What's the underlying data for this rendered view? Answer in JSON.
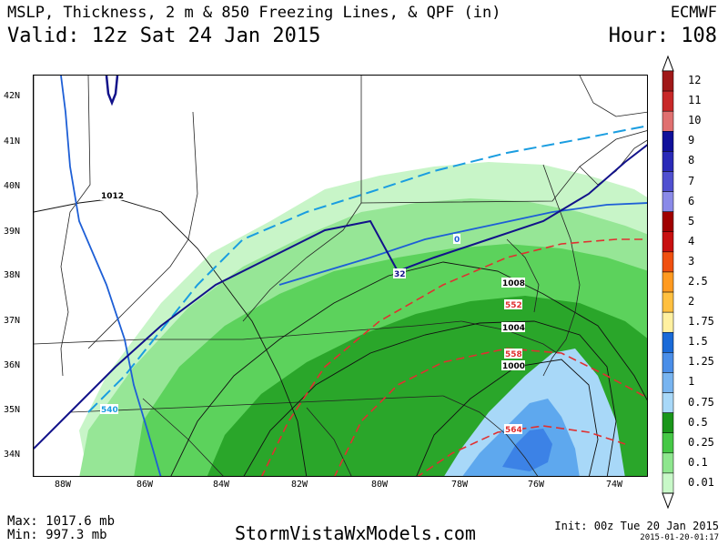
{
  "header": {
    "title": "MSLP, Thickness, 2 m & 850 Freezing Lines, & QPF (in)",
    "valid": "Valid: 12z Sat 24 Jan 2015",
    "model": "ECMWF",
    "hour": "Hour: 108"
  },
  "map": {
    "lat_labels": [
      "42N",
      "41N",
      "40N",
      "39N",
      "38N",
      "37N",
      "36N",
      "35N",
      "34N"
    ],
    "lon_labels": [
      "88W",
      "86W",
      "84W",
      "82W",
      "80W",
      "78W",
      "76W",
      "74W"
    ],
    "isobar_labels": [
      "1012",
      "1008",
      "1004",
      "1000"
    ],
    "thickness_labels": [
      "552",
      "558",
      "564"
    ],
    "freezing_labels": [
      "0",
      "32",
      "540"
    ],
    "colors": {
      "qpf_0_01": "#c8f5c8",
      "qpf_0_1": "#96e696",
      "qpf_0_25": "#5cd25c",
      "qpf_0_5": "#2aa62a",
      "qpf_0_75": "#a8d8f8",
      "qpf_1": "#5ea8ee",
      "qpf_1_25": "#3c82e6",
      "isobar": "#111111",
      "thickness": "#e03030",
      "freeze_2m": "#1e5fd6",
      "freeze_850": "#1a9de0",
      "line_32": "#12128a"
    }
  },
  "legend": {
    "labels": [
      "12",
      "11",
      "10",
      "9",
      "8",
      "7",
      "6",
      "5",
      "4",
      "3",
      "2.5",
      "2",
      "1.75",
      "1.5",
      "1.25",
      "1",
      "0.75",
      "0.5",
      "0.25",
      "0.1",
      "0.01"
    ],
    "colors": [
      "#a01818",
      "#c82828",
      "#e07070",
      "#10109a",
      "#2a2ab8",
      "#5050d0",
      "#8a8ae8",
      "#a00000",
      "#c81010",
      "#f05010",
      "#ff9a20",
      "#ffc040",
      "#fff0a0",
      "#1a6ad8",
      "#4a8ee8",
      "#78b4f0",
      "#a8d8f8",
      "#1a961a",
      "#46c846",
      "#8ee68e",
      "#c8f8c8"
    ]
  },
  "footer": {
    "max": "Max: 1017.6 mb",
    "min": "Min: 997.3 mb",
    "site": "StormVistaWxModels.com",
    "init": "Init: 00z Tue 20 Jan 2015",
    "stamp": "2015-01-20-01:17"
  }
}
